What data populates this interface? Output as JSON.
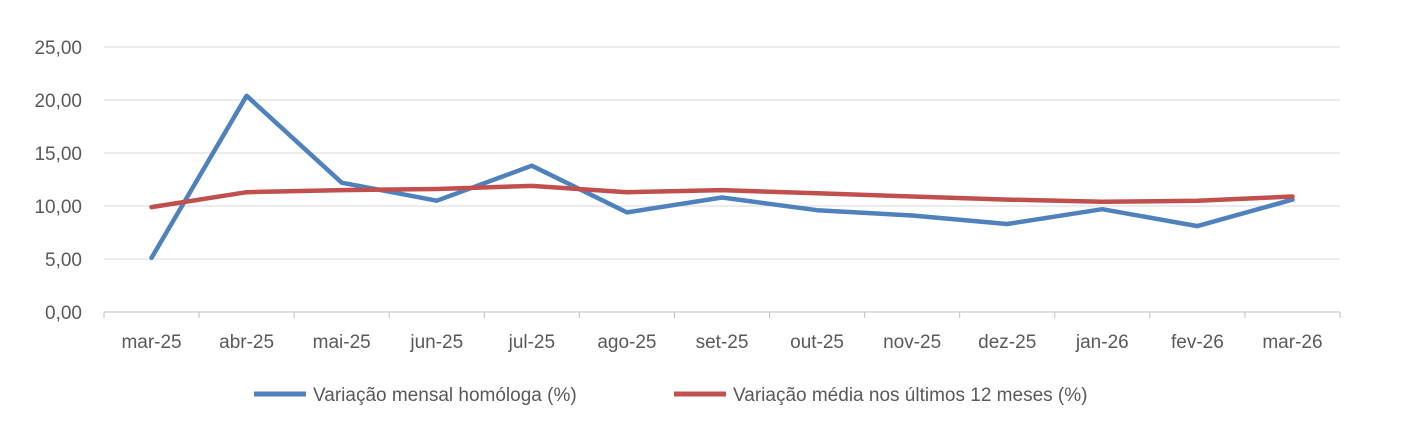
{
  "chart_data": {
    "type": "line",
    "categories": [
      "mar-25",
      "abr-25",
      "mai-25",
      "jun-25",
      "jul-25",
      "ago-25",
      "set-25",
      "out-25",
      "nov-25",
      "dez-25",
      "jan-26",
      "fev-26",
      "mar-26"
    ],
    "yticks": [
      "0,00",
      "5,00",
      "10,00",
      "15,00",
      "20,00",
      "25,00"
    ],
    "ylim": [
      0,
      25
    ],
    "grid": true,
    "legend_position": "bottom",
    "series": [
      {
        "name": "Variação mensal homóloga (%)",
        "color": "#4F81BD",
        "values": [
          5.1,
          20.4,
          12.2,
          10.5,
          13.8,
          9.4,
          10.8,
          9.6,
          9.1,
          8.3,
          9.7,
          8.1,
          10.6
        ]
      },
      {
        "name": "Variação média nos últimos 12 meses (%)",
        "color": "#C0504D",
        "values": [
          9.9,
          11.3,
          11.5,
          11.6,
          11.9,
          11.3,
          11.5,
          11.2,
          10.9,
          10.6,
          10.4,
          10.5,
          10.9
        ]
      }
    ]
  }
}
